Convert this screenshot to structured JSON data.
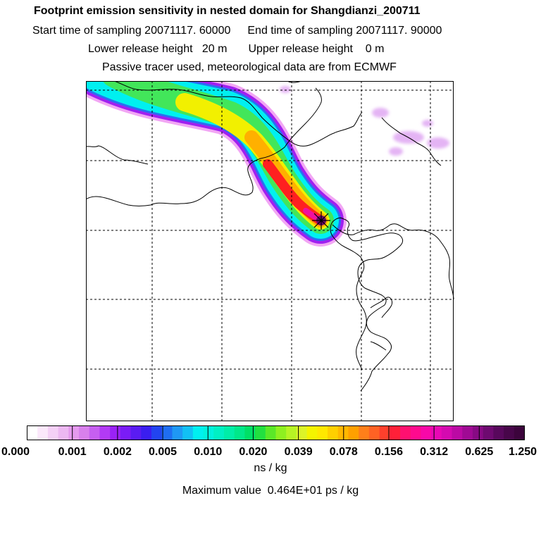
{
  "title": "Footprint emission sensitivity in nested domain for Shangdianzi_200711",
  "sampling": {
    "start": "Start time of sampling 20071117. 60000",
    "end": "End time of sampling 20071117. 90000"
  },
  "release": {
    "lower": "Lower release height   20 m",
    "upper": "Upper release height    0 m"
  },
  "note": "Passive tracer used, meteorological data are from ECMWF",
  "colorbar": {
    "ticks": [
      "0.000",
      "0.001",
      "0.002",
      "0.005",
      "0.010",
      "0.020",
      "0.039",
      "0.078",
      "0.156",
      "0.312",
      "0.625",
      "1.250"
    ],
    "colors": [
      "#ffffff",
      "#fbe8fb",
      "#f4d0f6",
      "#ecb8f1",
      "#e59aee",
      "#d880ec",
      "#c65ff0",
      "#b23af5",
      "#9a22f6",
      "#7a1cf6",
      "#5a1cf2",
      "#3a1ef0",
      "#2244f0",
      "#1f6ef2",
      "#1f98f4",
      "#12c0f4",
      "#00f0f0",
      "#00f2de",
      "#00f0c4",
      "#00eea8",
      "#00e88a",
      "#00e066",
      "#22e040",
      "#5ae828",
      "#8ef020",
      "#b6f424",
      "#dcf428",
      "#f4f400",
      "#ffe800",
      "#ffd000",
      "#ffb800",
      "#ffa000",
      "#ff7f1a",
      "#ff6224",
      "#ff402c",
      "#ff2038",
      "#ff1070",
      "#ff0a8e",
      "#f808a8",
      "#e808b4",
      "#d40ab0",
      "#bb0aa4",
      "#a00a94",
      "#880a84",
      "#6e0a70",
      "#58085c",
      "#48064a",
      "#3c043c"
    ],
    "unit": "ns / kg"
  },
  "max_value": "Maximum value  0.464E+01 ps / kg",
  "map": {
    "receptor": "Shangdianzi",
    "plume_colors": {
      "edge": "#f2a6f4",
      "violet": "#a020f0",
      "blue": "#2a6ef2",
      "cyan": "#00f0f0",
      "green": "#42e65a",
      "yellow": "#f2f000",
      "orange": "#ffb000",
      "red": "#ff2020",
      "magenta": "#f010a0",
      "core": "#6a0a6a"
    },
    "patch_color": "#e4b4f4"
  }
}
